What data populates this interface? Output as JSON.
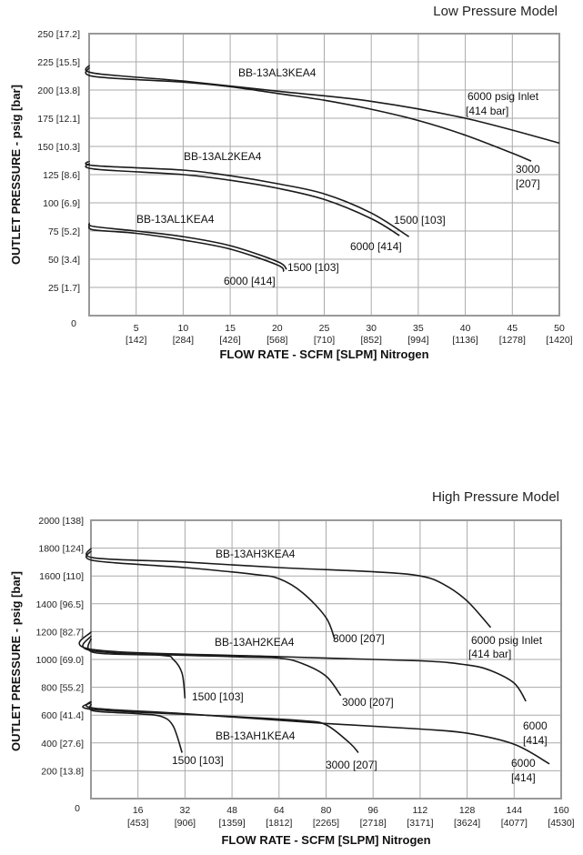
{
  "chart_data": [
    {
      "type": "line",
      "title": "Low Pressure Model",
      "xlabel": "FLOW RATE - SCFM [SLPM] Nitrogen",
      "ylabel": "OUTLET PRESSURE - psig [bar]",
      "xlim": [
        0,
        50
      ],
      "ylim": [
        0,
        250
      ],
      "grid": true,
      "x_ticks": [
        {
          "v": 5,
          "l": "5",
          "s": "[142]"
        },
        {
          "v": 10,
          "l": "10",
          "s": "[284]"
        },
        {
          "v": 15,
          "l": "15",
          "s": "[426]"
        },
        {
          "v": 20,
          "l": "20",
          "s": "[568]"
        },
        {
          "v": 25,
          "l": "25",
          "s": "[710]"
        },
        {
          "v": 30,
          "l": "30",
          "s": "[852]"
        },
        {
          "v": 35,
          "l": "35",
          "s": "[994]"
        },
        {
          "v": 40,
          "l": "40",
          "s": "[1136]"
        },
        {
          "v": 45,
          "l": "45",
          "s": "[1278]"
        },
        {
          "v": 50,
          "l": "50",
          "s": "[1420]"
        }
      ],
      "y_ticks": [
        {
          "v": 0,
          "l": "0"
        },
        {
          "v": 25,
          "l": "25 [1.7]"
        },
        {
          "v": 50,
          "l": "50 [3.4]"
        },
        {
          "v": 75,
          "l": "75 [5.2]"
        },
        {
          "v": 100,
          "l": "100 [6.9]"
        },
        {
          "v": 125,
          "l": "125 [8.6]"
        },
        {
          "v": 150,
          "l": "150 [10.3]"
        },
        {
          "v": 175,
          "l": "175 [12.1]"
        },
        {
          "v": 200,
          "l": "200 [13.8]"
        },
        {
          "v": 225,
          "l": "225 [15.5]"
        },
        {
          "v": 250,
          "l": "250 [17.2]"
        }
      ],
      "series": [
        {
          "model": "BB-13AL3KEA4",
          "inlet": "6000",
          "points": [
            [
              0,
              222
            ],
            [
              0.5,
              215
            ],
            [
              10,
              208
            ],
            [
              20,
              199
            ],
            [
              30,
              190
            ],
            [
              40,
              175
            ],
            [
              50,
              153
            ]
          ]
        },
        {
          "model": "BB-13AL3KEA4",
          "inlet": "3000",
          "points": [
            [
              0,
              220
            ],
            [
              0.5,
              212
            ],
            [
              10,
              207
            ],
            [
              15,
              203
            ],
            [
              20,
              197
            ],
            [
              25,
              191
            ],
            [
              30,
              183
            ],
            [
              35,
              173
            ],
            [
              40,
              160
            ],
            [
              45,
              144
            ],
            [
              47,
              137
            ]
          ]
        },
        {
          "model": "BB-13AL2KEA4",
          "inlet": "1500",
          "points": [
            [
              0,
              137
            ],
            [
              0.5,
              133
            ],
            [
              10,
              129
            ],
            [
              15,
              124
            ],
            [
              20,
              117
            ],
            [
              25,
              108
            ],
            [
              30,
              91
            ],
            [
              34,
              70
            ]
          ]
        },
        {
          "model": "BB-13AL2KEA4",
          "inlet": "6000",
          "points": [
            [
              0,
              135
            ],
            [
              0.5,
              130
            ],
            [
              10,
              125
            ],
            [
              15,
              120
            ],
            [
              20,
              113
            ],
            [
              25,
              103
            ],
            [
              30,
              86
            ],
            [
              33,
              71
            ]
          ]
        },
        {
          "model": "BB-13AL1KEA4",
          "inlet": "1500",
          "points": [
            [
              0,
              82
            ],
            [
              0.5,
              79
            ],
            [
              5,
              75
            ],
            [
              10,
              70
            ],
            [
              15,
              62
            ],
            [
              20,
              48
            ],
            [
              21,
              41
            ]
          ]
        },
        {
          "model": "BB-13AL1KEA4",
          "inlet": "6000",
          "points": [
            [
              0,
              80
            ],
            [
              0.5,
              76
            ],
            [
              5,
              73
            ],
            [
              10,
              67
            ],
            [
              15,
              59
            ],
            [
              20,
              45
            ],
            [
              20.7,
              39
            ]
          ]
        }
      ],
      "annotations": [
        "BB-13AL3KEA4",
        "6000 psig Inlet",
        "[414 bar]",
        "3000",
        "[207]",
        "BB-13AL2KEA4",
        "1500 [103]",
        "6000 [414]",
        "BB-13AL1KEA4",
        "1500 [103]",
        "6000 [414]"
      ]
    },
    {
      "type": "line",
      "title": "High Pressure Model",
      "xlabel": "FLOW RATE - SCFM [SLPM] Nitrogen",
      "ylabel": "OUTLET PRESSURE - psig [bar]",
      "xlim": [
        0,
        160
      ],
      "ylim": [
        0,
        2000
      ],
      "grid": true,
      "x_ticks": [
        {
          "v": 16,
          "l": "16",
          "s": "[453]"
        },
        {
          "v": 32,
          "l": "32",
          "s": "[906]"
        },
        {
          "v": 48,
          "l": "48",
          "s": "[1359]"
        },
        {
          "v": 64,
          "l": "64",
          "s": "[1812]"
        },
        {
          "v": 80,
          "l": "80",
          "s": "[2265]"
        },
        {
          "v": 96,
          "l": "96",
          "s": "[2718]"
        },
        {
          "v": 112,
          "l": "112",
          "s": "[3171]"
        },
        {
          "v": 128,
          "l": "128",
          "s": "[3624]"
        },
        {
          "v": 144,
          "l": "144",
          "s": "[4077]"
        },
        {
          "v": 160,
          "l": "160",
          "s": "[4530]"
        }
      ],
      "y_ticks": [
        {
          "v": 0,
          "l": "0"
        },
        {
          "v": 200,
          "l": "200 [13.8]"
        },
        {
          "v": 400,
          "l": "400 [27.6]"
        },
        {
          "v": 600,
          "l": "600 [41.4]"
        },
        {
          "v": 800,
          "l": "800 [55.2]"
        },
        {
          "v": 1000,
          "l": "1000 [69.0]"
        },
        {
          "v": 1200,
          "l": "1200 [82.7]"
        },
        {
          "v": 1400,
          "l": "1400 [96.5]"
        },
        {
          "v": 1600,
          "l": "1600 [110]"
        },
        {
          "v": 1800,
          "l": "1800 [124]"
        },
        {
          "v": 2000,
          "l": "2000 [138]"
        }
      ],
      "series": [
        {
          "model": "BB-13AH3KEA4",
          "inlet": "6000",
          "points": [
            [
              0,
              1800
            ],
            [
              1,
              1730
            ],
            [
              32,
              1700
            ],
            [
              64,
              1660
            ],
            [
              96,
              1630
            ],
            [
              112,
              1600
            ],
            [
              120,
              1540
            ],
            [
              128,
              1420
            ],
            [
              136,
              1230
            ]
          ]
        },
        {
          "model": "BB-13AH3KEA4",
          "inlet": "3000",
          "points": [
            [
              0,
              1780
            ],
            [
              1,
              1710
            ],
            [
              32,
              1660
            ],
            [
              56,
              1610
            ],
            [
              64,
              1580
            ],
            [
              72,
              1480
            ],
            [
              80,
              1300
            ],
            [
              83,
              1140
            ]
          ]
        },
        {
          "model": "BB-13AH2KEA4",
          "inlet": "6000",
          "points": [
            [
              0,
              1200
            ],
            [
              1,
              1070
            ],
            [
              64,
              1020
            ],
            [
              112,
              990
            ],
            [
              128,
              960
            ],
            [
              136,
              920
            ],
            [
              144,
              830
            ],
            [
              148,
              700
            ]
          ]
        },
        {
          "model": "BB-13AH2KEA4",
          "inlet": "3000",
          "points": [
            [
              0,
              1170
            ],
            [
              1,
              1060
            ],
            [
              48,
              1020
            ],
            [
              64,
              1010
            ],
            [
              72,
              970
            ],
            [
              80,
              880
            ],
            [
              85,
              740
            ]
          ]
        },
        {
          "model": "BB-13AH2KEA4",
          "inlet": "1500",
          "points": [
            [
              0,
              1150
            ],
            [
              1,
              1050
            ],
            [
              24,
              1030
            ],
            [
              28,
              1000
            ],
            [
              31,
              900
            ],
            [
              32,
              720
            ]
          ]
        },
        {
          "model": "BB-13AH1KEA4",
          "inlet": "6000",
          "points": [
            [
              0,
              700
            ],
            [
              1,
              650
            ],
            [
              32,
              610
            ],
            [
              80,
              540
            ],
            [
              112,
              500
            ],
            [
              128,
              470
            ],
            [
              144,
              390
            ],
            [
              156,
              250
            ]
          ]
        },
        {
          "model": "BB-13AH1KEA4",
          "inlet": "3000",
          "points": [
            [
              0,
              690
            ],
            [
              1,
              640
            ],
            [
              48,
              590
            ],
            [
              72,
              560
            ],
            [
              80,
              530
            ],
            [
              88,
              400
            ],
            [
              91,
              330
            ]
          ]
        },
        {
          "model": "BB-13AH1KEA4",
          "inlet": "1500",
          "points": [
            [
              0,
              680
            ],
            [
              1,
              630
            ],
            [
              16,
              610
            ],
            [
              24,
              590
            ],
            [
              28,
              520
            ],
            [
              31,
              330
            ]
          ]
        }
      ],
      "annotations": [
        "BB-13AH3KEA4",
        "3000 [207]",
        "6000 psig Inlet",
        "[414 bar]",
        "BB-13AH2KEA4",
        "1500 [103]",
        "3000 [207]",
        "6000",
        "[414]",
        "BB-13AH1KEA4",
        "1500 [103]",
        "3000 [207]",
        "6000",
        "[414]"
      ]
    }
  ]
}
